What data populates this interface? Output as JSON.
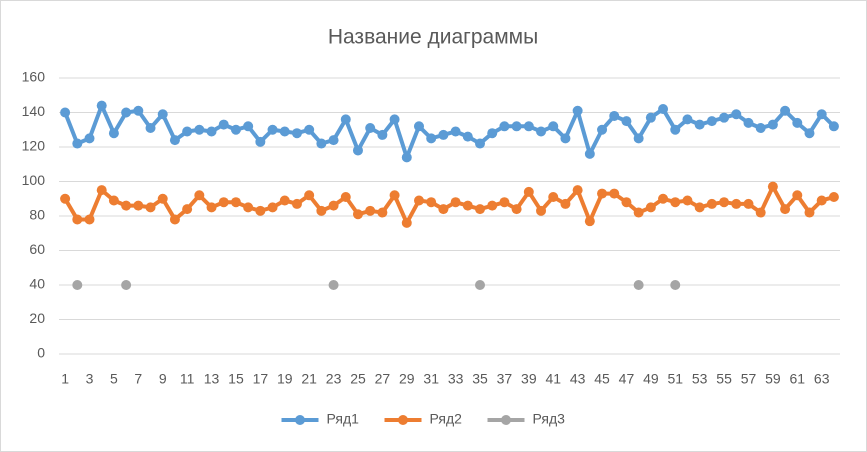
{
  "chart_data": {
    "type": "line",
    "title": "Название диаграммы",
    "categories": [
      1,
      null,
      3,
      null,
      5,
      null,
      7,
      null,
      9,
      null,
      11,
      null,
      13,
      null,
      15,
      null,
      17,
      null,
      19,
      null,
      21,
      null,
      23,
      null,
      25,
      null,
      27,
      null,
      29,
      null,
      31,
      null,
      33,
      null,
      35,
      null,
      37,
      null,
      39,
      null,
      41,
      null,
      43,
      null,
      45,
      null,
      47,
      null,
      49,
      null,
      51,
      null,
      53,
      null,
      55,
      null,
      57,
      null,
      59,
      null,
      61,
      null,
      63,
      null
    ],
    "series": [
      {
        "name": "Ряд1",
        "color": "#5b9bd5",
        "values": [
          140,
          122,
          125,
          144,
          128,
          140,
          141,
          131,
          139,
          124,
          129,
          130,
          129,
          133,
          130,
          132,
          123,
          130,
          129,
          128,
          130,
          122,
          124,
          136,
          118,
          131,
          127,
          136,
          114,
          132,
          125,
          127,
          129,
          126,
          122,
          128,
          132,
          132,
          132,
          129,
          132,
          125,
          141,
          116,
          130,
          138,
          135,
          125,
          137,
          142,
          130,
          136,
          133,
          135,
          137,
          139,
          134,
          131,
          133,
          141,
          134,
          128,
          139,
          132
        ]
      },
      {
        "name": "Ряд2",
        "color": "#ed7d31",
        "values": [
          90,
          78,
          78,
          95,
          89,
          86,
          86,
          85,
          90,
          78,
          84,
          92,
          85,
          88,
          88,
          85,
          83,
          85,
          89,
          87,
          92,
          83,
          86,
          91,
          81,
          83,
          82,
          92,
          76,
          89,
          88,
          84,
          88,
          86,
          84,
          86,
          88,
          84,
          94,
          83,
          91,
          87,
          95,
          77,
          93,
          93,
          88,
          82,
          85,
          90,
          88,
          89,
          85,
          87,
          88,
          87,
          87,
          82,
          97,
          84,
          92,
          82,
          89,
          91
        ]
      },
      {
        "name": "Ряд3",
        "color": "#a5a5a5",
        "values": [
          null,
          40,
          null,
          null,
          null,
          40,
          null,
          null,
          null,
          null,
          null,
          null,
          null,
          null,
          null,
          null,
          null,
          null,
          null,
          null,
          null,
          null,
          40,
          null,
          null,
          null,
          null,
          null,
          null,
          null,
          null,
          null,
          null,
          null,
          40,
          null,
          null,
          null,
          null,
          null,
          null,
          null,
          null,
          null,
          null,
          null,
          null,
          40,
          null,
          null,
          40,
          null,
          null,
          null,
          null,
          null,
          null,
          null,
          null,
          null,
          null,
          null,
          null,
          null
        ]
      }
    ],
    "ylim": [
      0,
      160
    ],
    "yticks": [
      0,
      20,
      40,
      60,
      80,
      100,
      120,
      140,
      160
    ],
    "grid": true,
    "legend": "bottom"
  }
}
